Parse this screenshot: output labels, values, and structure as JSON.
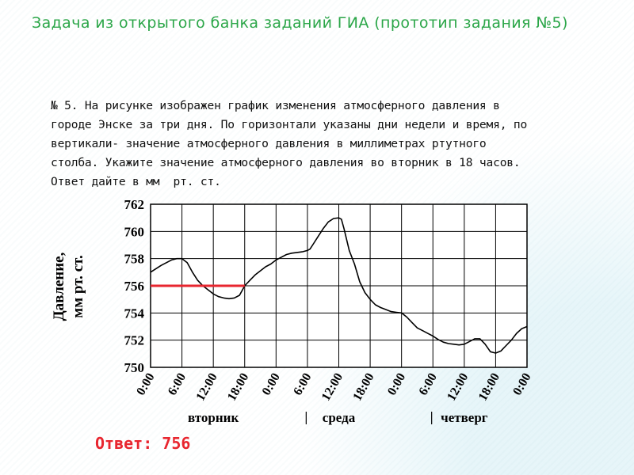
{
  "slide": {
    "title": "Задача из открытого банка заданий ГИА (прототип задания №5)"
  },
  "problem": {
    "lines": [
      "№ 5. На рисунке изображен график изменения атмосферного давления в",
      "городе Энске за три дня. По горизонтали указаны дни недели и время, по",
      "вертикали- значение атмосферного давления в миллиметрах ртутного",
      "столба. Укажите значение атмосферного давления во вторник в 18 часов.",
      "Ответ дайте в мм  рт. ст."
    ]
  },
  "answer": {
    "text": "Ответ: 756"
  },
  "chart_data": {
    "type": "line",
    "ylabel": [
      "Давление,",
      "мм рт. ст."
    ],
    "ylim": [
      750,
      762
    ],
    "yticks": [
      750,
      752,
      754,
      756,
      758,
      760,
      762
    ],
    "xlim": [
      0,
      72
    ],
    "xticks": [
      0,
      6,
      12,
      18,
      24,
      30,
      36,
      42,
      48,
      54,
      60,
      66,
      72
    ],
    "xtick_labels": [
      "0:00",
      "6:00",
      "12:00",
      "18:00",
      "0:00",
      "6:00",
      "12:00",
      "18:00",
      "0:00",
      "6:00",
      "12:00",
      "18:00",
      "0:00"
    ],
    "day_labels": [
      {
        "label": "вторник",
        "center": 12
      },
      {
        "label": "среда",
        "center": 36
      },
      {
        "label": "четверг",
        "center": 60
      }
    ],
    "day_separators": [
      24,
      48
    ],
    "grid": true,
    "series": [
      {
        "color": "#000000",
        "x": [
          0,
          2,
          4,
          5,
          6,
          7,
          8,
          9,
          10,
          11,
          12,
          13,
          14,
          15,
          16,
          17,
          18,
          19,
          20,
          21,
          22,
          23,
          24,
          25,
          26,
          27,
          28,
          29,
          30,
          30.5,
          31,
          32,
          33,
          34,
          35,
          36,
          36.5,
          37,
          38,
          39,
          40,
          41,
          42,
          43,
          44,
          45,
          46,
          47,
          48,
          49,
          50,
          51,
          52,
          53,
          54,
          55,
          56,
          57,
          58,
          59,
          60,
          61,
          62,
          63,
          64,
          65,
          66,
          67,
          68,
          69,
          70,
          71,
          72
        ],
        "y": [
          757.0,
          757.5,
          757.9,
          758.0,
          758.0,
          757.7,
          757.0,
          756.4,
          756.0,
          755.7,
          755.4,
          755.2,
          755.1,
          755.05,
          755.1,
          755.3,
          756.0,
          756.4,
          756.8,
          757.1,
          757.4,
          757.6,
          757.9,
          758.1,
          758.3,
          758.4,
          758.45,
          758.5,
          758.6,
          758.7,
          759.0,
          759.6,
          760.2,
          760.7,
          760.95,
          761.0,
          760.9,
          760.2,
          758.6,
          757.6,
          756.3,
          755.5,
          755.0,
          754.6,
          754.4,
          754.25,
          754.1,
          754.05,
          754.0,
          753.7,
          753.3,
          752.9,
          752.7,
          752.5,
          752.3,
          752.05,
          751.85,
          751.75,
          751.7,
          751.65,
          751.7,
          751.9,
          752.1,
          752.1,
          751.7,
          751.15,
          751.05,
          751.2,
          751.6,
          752.0,
          752.5,
          752.85,
          753.0
        ]
      }
    ],
    "highlight": {
      "color": "#e8262f",
      "y": 756,
      "x_from": 0,
      "x_to": 18
    }
  }
}
